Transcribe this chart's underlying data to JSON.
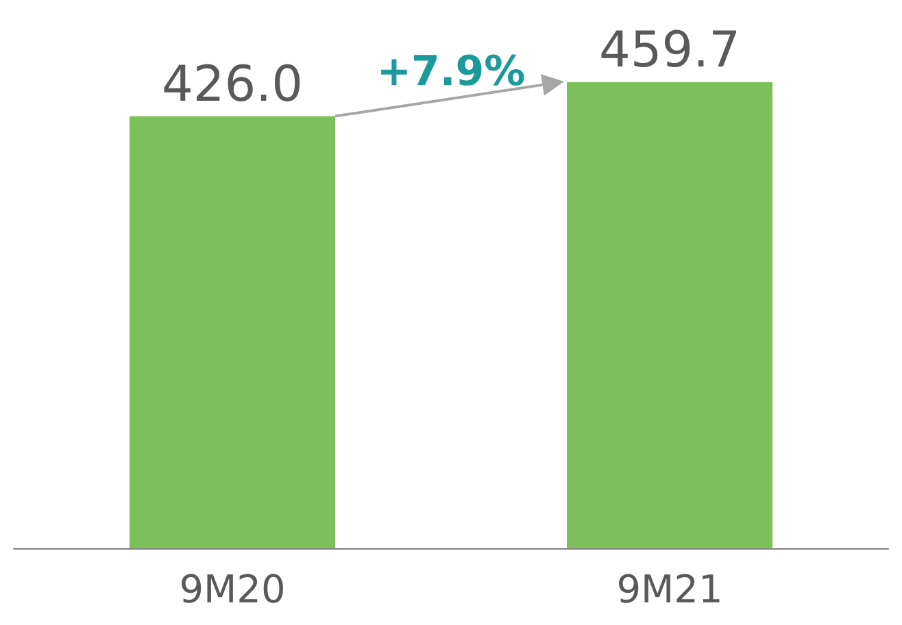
{
  "chart_data": {
    "type": "bar",
    "categories": [
      "9M20",
      "9M21"
    ],
    "values": [
      426.0,
      459.7
    ],
    "value_labels": [
      "426.0",
      "459.7"
    ],
    "color": "#7cc05a",
    "annotations": [
      "+7.9%"
    ]
  }
}
